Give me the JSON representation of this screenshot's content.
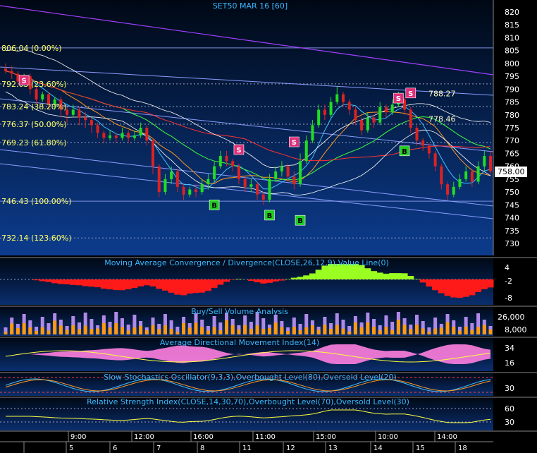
{
  "title": "SET50 MAR 16   [60]",
  "colors": {
    "background": "#000000",
    "panel_top": "#000b1a",
    "panel_bottom": "#0b3a8a",
    "bull": "#22dd22",
    "bear": "#dd2222",
    "title_text": "#3ab8ff",
    "axis_text": "#ffffff",
    "fib_text": "#ffff66",
    "sell_marker": "#e0307a",
    "buy_marker": "#22cc22"
  },
  "price_panel": {
    "y_ticks": [
      "820",
      "815",
      "810",
      "805",
      "800",
      "795",
      "790",
      "785",
      "780",
      "775",
      "770",
      "765",
      "760",
      "755",
      "750",
      "745",
      "740",
      "735",
      "730"
    ],
    "last_price": "758.00",
    "fib_levels": [
      {
        "label": "806.04 (0.00%)",
        "value": 806.04
      },
      {
        "label": "792.03 (23.60%)",
        "value": 792.03
      },
      {
        "label": "783.24 (38.20%)",
        "value": 783.24
      },
      {
        "label": "776.37 (50.00%)",
        "value": 776.37
      },
      {
        "label": "769.23 (61.80%)",
        "value": 769.23
      },
      {
        "label": "746.43 (100.00%)",
        "value": 746.43
      },
      {
        "label": "732.14 (123.60%)",
        "value": 732.14
      }
    ],
    "annotations": [
      {
        "text": "788.27",
        "value": 788.27
      },
      {
        "text": "778.46",
        "value": 778.46
      }
    ],
    "signals": [
      {
        "type": "S",
        "bar": 3,
        "value": 793.5
      },
      {
        "type": "B",
        "bar": 34,
        "value": 745
      },
      {
        "type": "S",
        "bar": 38,
        "value": 766.5
      },
      {
        "type": "B",
        "bar": 43,
        "value": 741
      },
      {
        "type": "S",
        "bar": 47,
        "value": 769.5
      },
      {
        "type": "B",
        "bar": 48,
        "value": 739
      },
      {
        "type": "S",
        "bar": 64,
        "value": 786.5
      },
      {
        "type": "S",
        "bar": 66,
        "value": 788.5
      },
      {
        "type": "B",
        "bar": 65,
        "value": 766
      }
    ]
  },
  "macd_panel": {
    "title": "Moving Average Convergence / Divergence(CLOSE,26,12,9),Value Line(0)",
    "y_ticks": [
      "4",
      "-2",
      "-8"
    ]
  },
  "volume_panel": {
    "title": "Buy/Sell Volume Analysis",
    "y_ticks": [
      "26,000",
      "8,000"
    ]
  },
  "adx_panel": {
    "title": "Average Directional Movement Index(14)",
    "y_ticks": [
      "34",
      "16"
    ]
  },
  "stoch_panel": {
    "title": "Slow Stochastics Oscillator(9,3,3),Overbought Level(80),Oversold Level(20)",
    "y_ticks": [
      "30"
    ]
  },
  "rsi_panel": {
    "title": "Relative Strength Index(CLOSE,14,30,70),Overbought Level(70),Oversold Level(30)",
    "y_ticks": [
      "60",
      "30"
    ]
  },
  "time_axis": {
    "times": [
      "9:00",
      "12:00",
      "16:00",
      "11:00",
      "15:00",
      "10:00",
      "14:00"
    ],
    "dates": [
      "5",
      "6",
      "7",
      "8",
      "11",
      "12",
      "13",
      "14",
      "15",
      "18"
    ]
  },
  "chart_data": {
    "type": "candlestick",
    "title": "SET50 MAR 16   [60]",
    "ylim": [
      727,
      823
    ],
    "candles": [
      [
        798,
        797,
        800,
        796
      ],
      [
        797,
        796,
        799,
        794
      ],
      [
        796,
        793,
        797,
        792
      ],
      [
        793,
        795,
        796,
        791
      ],
      [
        795,
        790,
        796,
        788
      ],
      [
        790,
        786,
        791,
        784
      ],
      [
        786,
        788,
        789,
        785
      ],
      [
        788,
        784,
        789,
        782
      ],
      [
        784,
        786,
        787,
        782
      ],
      [
        786,
        782,
        787,
        779
      ],
      [
        782,
        780,
        783,
        777
      ],
      [
        780,
        782,
        784,
        779
      ],
      [
        782,
        779,
        783,
        776
      ],
      [
        779,
        778,
        781,
        775
      ],
      [
        778,
        776,
        779,
        773
      ],
      [
        776,
        773,
        777,
        771
      ],
      [
        773,
        771,
        774,
        769
      ],
      [
        771,
        772,
        774,
        770
      ],
      [
        772,
        771,
        773,
        769
      ],
      [
        771,
        773,
        775,
        770
      ],
      [
        773,
        771,
        774,
        769
      ],
      [
        771,
        772,
        774,
        770
      ],
      [
        772,
        775,
        777,
        771
      ],
      [
        775,
        770,
        776,
        768
      ],
      [
        770,
        760,
        771,
        757
      ],
      [
        760,
        750,
        761,
        748
      ],
      [
        750,
        755,
        757,
        749
      ],
      [
        755,
        758,
        760,
        753
      ],
      [
        758,
        752,
        759,
        750
      ],
      [
        752,
        749,
        753,
        747
      ],
      [
        749,
        751,
        752,
        748
      ],
      [
        751,
        750,
        753,
        748
      ],
      [
        750,
        753,
        755,
        749
      ],
      [
        753,
        755,
        757,
        751
      ],
      [
        755,
        760,
        762,
        754
      ],
      [
        760,
        764,
        766,
        759
      ],
      [
        764,
        762,
        766,
        760
      ],
      [
        762,
        760,
        763,
        758
      ],
      [
        760,
        755,
        761,
        753
      ],
      [
        755,
        752,
        756,
        750
      ],
      [
        752,
        753,
        755,
        750
      ],
      [
        753,
        749,
        754,
        747
      ],
      [
        749,
        747,
        750,
        745
      ],
      [
        747,
        755,
        757,
        746
      ],
      [
        755,
        758,
        760,
        754
      ],
      [
        758,
        760,
        762,
        756
      ],
      [
        760,
        756,
        761,
        754
      ],
      [
        756,
        753,
        758,
        751
      ],
      [
        753,
        762,
        765,
        752
      ],
      [
        762,
        770,
        772,
        761
      ],
      [
        770,
        776,
        778,
        769
      ],
      [
        776,
        782,
        784,
        775
      ],
      [
        782,
        780,
        784,
        778
      ],
      [
        780,
        785,
        787,
        779
      ],
      [
        785,
        788,
        791,
        784
      ],
      [
        788,
        785,
        789,
        783
      ],
      [
        785,
        782,
        786,
        780
      ],
      [
        782,
        778,
        783,
        776
      ],
      [
        778,
        774,
        779,
        772
      ],
      [
        774,
        779,
        781,
        773
      ],
      [
        779,
        777,
        780,
        775
      ],
      [
        777,
        783,
        785,
        776
      ],
      [
        783,
        781,
        784,
        779
      ],
      [
        781,
        784,
        786,
        780
      ],
      [
        784,
        786,
        789,
        783
      ],
      [
        786,
        782,
        787,
        780
      ],
      [
        782,
        775,
        783,
        773
      ],
      [
        775,
        770,
        776,
        768
      ],
      [
        770,
        768,
        771,
        766
      ],
      [
        768,
        765,
        769,
        763
      ],
      [
        765,
        760,
        766,
        758
      ],
      [
        760,
        753,
        761,
        751
      ],
      [
        753,
        749,
        754,
        747
      ],
      [
        749,
        752,
        754,
        748
      ],
      [
        752,
        755,
        757,
        751
      ],
      [
        755,
        758,
        760,
        754
      ],
      [
        758,
        754,
        759,
        752
      ],
      [
        754,
        760,
        762,
        753
      ],
      [
        760,
        764,
        766,
        758
      ],
      [
        764,
        758,
        766,
        757
      ]
    ]
  }
}
